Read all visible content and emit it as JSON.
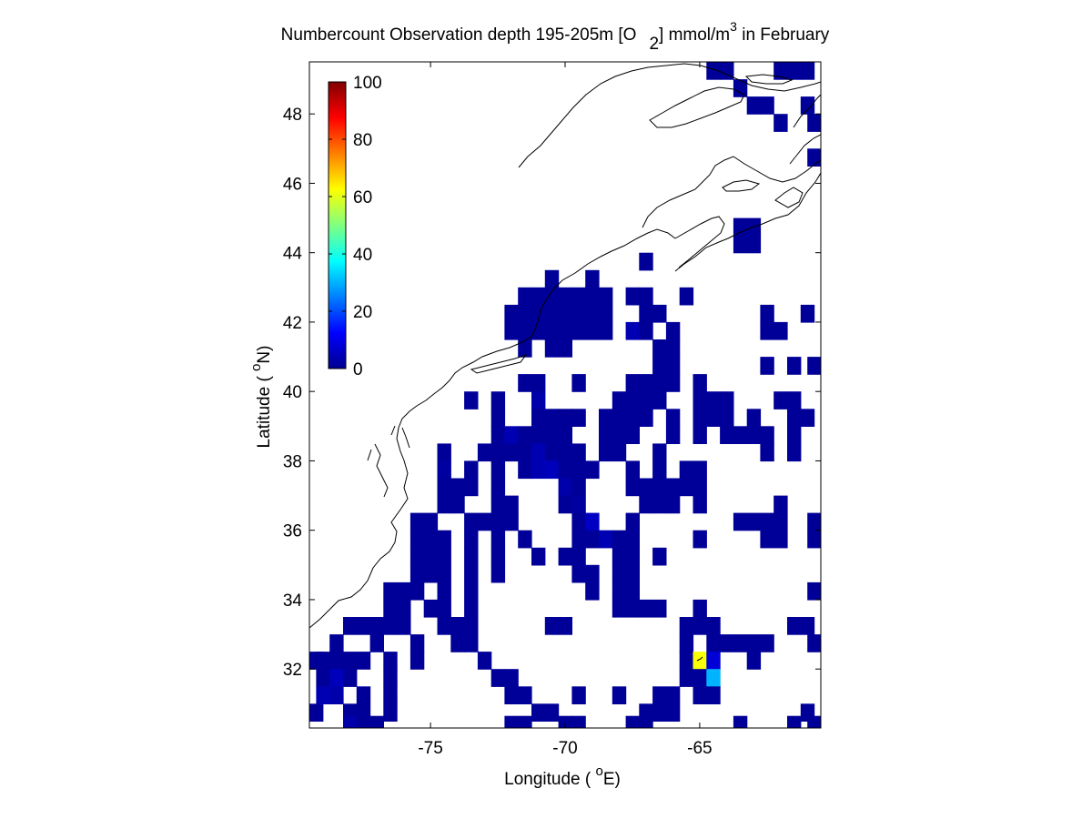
{
  "figure": {
    "title_main": "Numbercount Observation depth 195-205m [O",
    "title_sub": "2",
    "title_unit": "] mmol/m",
    "title_sup": "3",
    "title_tail": " in February",
    "xlabel_main": "Longitude ( ",
    "xlabel_sup": "o",
    "xlabel_tail": "E)",
    "ylabel_main": "Latitude ( ",
    "ylabel_sup": "o",
    "ylabel_tail": "N)"
  },
  "chart_data": {
    "type": "heatmap",
    "xlim": [
      -79.5,
      -60.5
    ],
    "ylim": [
      30.3,
      49.5
    ],
    "cell_size": 0.5,
    "xticks": [
      -75,
      -70,
      -65
    ],
    "xtick_labels": [
      "-75",
      "-70",
      "-65"
    ],
    "yticks": [
      32,
      34,
      36,
      38,
      40,
      42,
      44,
      46,
      48
    ],
    "ytick_labels": [
      "32",
      "34",
      "36",
      "38",
      "40",
      "42",
      "44",
      "46",
      "48"
    ],
    "colorbar": {
      "colormap": "jet",
      "range": [
        0,
        100
      ],
      "ticks": [
        0,
        20,
        40,
        60,
        80,
        100
      ],
      "tick_labels": [
        "0",
        "20",
        "40",
        "60",
        "80",
        "100"
      ],
      "placement": "top-left inside axes"
    },
    "grid": false,
    "coastline": true,
    "cells": [
      [
        -64.5,
        49.25,
        1
      ],
      [
        -64,
        49.25,
        1
      ],
      [
        -62,
        49.25,
        1
      ],
      [
        -61.5,
        49.25,
        1
      ],
      [
        -61,
        49.25,
        1
      ],
      [
        -63.5,
        48.75,
        1
      ],
      [
        -62.5,
        48.25,
        1
      ],
      [
        -61,
        48.25,
        1
      ],
      [
        -63,
        48.25,
        1
      ],
      [
        -62,
        47.75,
        1
      ],
      [
        -60.75,
        47.75,
        1
      ],
      [
        -60.75,
        46.75,
        1
      ],
      [
        -63.5,
        44.75,
        1
      ],
      [
        -63,
        44.75,
        1
      ],
      [
        -63.5,
        44.25,
        1
      ],
      [
        -63,
        44.25,
        1
      ],
      [
        -67,
        43.75,
        1
      ],
      [
        -70.5,
        43.25,
        1
      ],
      [
        -69,
        43.25,
        1
      ],
      [
        -71.5,
        42.75,
        1
      ],
      [
        -71,
        42.75,
        1
      ],
      [
        -70.5,
        42.75,
        1
      ],
      [
        -70,
        42.75,
        1
      ],
      [
        -69.5,
        42.75,
        1
      ],
      [
        -69,
        42.75,
        1
      ],
      [
        -68.5,
        42.75,
        1
      ],
      [
        -67.5,
        42.75,
        1
      ],
      [
        -67,
        42.75,
        1
      ],
      [
        -65.5,
        42.75,
        1
      ],
      [
        -72,
        42.25,
        1
      ],
      [
        -71.5,
        42.25,
        1
      ],
      [
        -71,
        42.25,
        1
      ],
      [
        -70.5,
        42.25,
        1
      ],
      [
        -70,
        42.25,
        1
      ],
      [
        -69.5,
        42.25,
        1
      ],
      [
        -69,
        42.25,
        1
      ],
      [
        -68.5,
        42.25,
        1
      ],
      [
        -67,
        42.25,
        1
      ],
      [
        -66.5,
        42.25,
        1
      ],
      [
        -62.5,
        42.25,
        1
      ],
      [
        -61,
        42.25,
        1
      ],
      [
        -72,
        41.75,
        1
      ],
      [
        -71.5,
        41.75,
        1
      ],
      [
        -71,
        41.75,
        1
      ],
      [
        -70.5,
        41.75,
        1
      ],
      [
        -70,
        41.75,
        1
      ],
      [
        -69.5,
        41.75,
        1
      ],
      [
        -69,
        41.75,
        1
      ],
      [
        -68.5,
        41.75,
        1
      ],
      [
        -67.5,
        41.75,
        4
      ],
      [
        -67,
        41.75,
        1
      ],
      [
        -66,
        41.75,
        1
      ],
      [
        -62.5,
        41.75,
        1
      ],
      [
        -62,
        41.75,
        1
      ],
      [
        -71.5,
        41.25,
        1
      ],
      [
        -70.5,
        41.25,
        1
      ],
      [
        -70,
        41.25,
        1
      ],
      [
        -66.5,
        41.25,
        1
      ],
      [
        -66,
        41.25,
        1
      ],
      [
        -66.5,
        40.75,
        1
      ],
      [
        -66,
        40.75,
        1
      ],
      [
        -62.5,
        40.75,
        1
      ],
      [
        -61.5,
        40.75,
        1
      ],
      [
        -60.75,
        40.75,
        1
      ],
      [
        -71.5,
        40.25,
        1
      ],
      [
        -71,
        40.25,
        1
      ],
      [
        -69.5,
        40.25,
        1
      ],
      [
        -67.5,
        40.25,
        1
      ],
      [
        -67,
        40.25,
        1
      ],
      [
        -66.5,
        40.25,
        1
      ],
      [
        -66,
        40.25,
        1
      ],
      [
        -65,
        40.25,
        1
      ],
      [
        -73.5,
        39.75,
        1
      ],
      [
        -72.5,
        39.75,
        1
      ],
      [
        -71,
        39.75,
        3
      ],
      [
        -68,
        39.75,
        1
      ],
      [
        -67.5,
        39.75,
        1
      ],
      [
        -67,
        39.75,
        1
      ],
      [
        -66.5,
        39.75,
        1
      ],
      [
        -65,
        39.75,
        1
      ],
      [
        -64.5,
        39.75,
        1
      ],
      [
        -64,
        39.75,
        1
      ],
      [
        -62,
        39.75,
        1
      ],
      [
        -61.5,
        39.75,
        1
      ],
      [
        -72.5,
        39.25,
        1
      ],
      [
        -71,
        39.25,
        1
      ],
      [
        -70.5,
        39.25,
        1
      ],
      [
        -70,
        39.25,
        1
      ],
      [
        -69.5,
        39.25,
        1
      ],
      [
        -68.5,
        39.25,
        1
      ],
      [
        -68,
        39.25,
        1
      ],
      [
        -67.5,
        39.25,
        1
      ],
      [
        -67,
        39.25,
        1
      ],
      [
        -66,
        39.25,
        1
      ],
      [
        -65,
        39.25,
        1
      ],
      [
        -64.5,
        39.25,
        1
      ],
      [
        -64,
        39.25,
        1
      ],
      [
        -63,
        39.25,
        1
      ],
      [
        -61.5,
        39.25,
        1
      ],
      [
        -61,
        39.25,
        1
      ],
      [
        -72.5,
        38.75,
        1
      ],
      [
        -72,
        38.75,
        4
      ],
      [
        -71.5,
        38.75,
        1
      ],
      [
        -71,
        38.75,
        1
      ],
      [
        -70.5,
        38.75,
        1
      ],
      [
        -70,
        38.75,
        1
      ],
      [
        -68.5,
        38.75,
        1
      ],
      [
        -68,
        38.75,
        1
      ],
      [
        -67.5,
        38.75,
        1
      ],
      [
        -66,
        38.75,
        1
      ],
      [
        -65,
        38.75,
        1
      ],
      [
        -64,
        38.75,
        1
      ],
      [
        -63.5,
        38.75,
        1
      ],
      [
        -63,
        38.75,
        1
      ],
      [
        -62.5,
        38.75,
        1
      ],
      [
        -61.5,
        38.75,
        1
      ],
      [
        -73,
        38.25,
        1
      ],
      [
        -72.5,
        38.25,
        1
      ],
      [
        -72,
        38.25,
        1
      ],
      [
        -71.5,
        38.25,
        1
      ],
      [
        -71,
        38.25,
        4
      ],
      [
        -70.5,
        38.25,
        1
      ],
      [
        -70,
        38.25,
        1
      ],
      [
        -69.5,
        38.25,
        1
      ],
      [
        -68.5,
        38.25,
        1
      ],
      [
        -68,
        38.25,
        1
      ],
      [
        -66.5,
        38.25,
        1
      ],
      [
        -62.5,
        38.25,
        1
      ],
      [
        -61.5,
        38.25,
        1
      ],
      [
        -74.5,
        38.25,
        1
      ],
      [
        -74.5,
        37.75,
        2
      ],
      [
        -73.5,
        37.75,
        1
      ],
      [
        -72.5,
        37.75,
        1
      ],
      [
        -71.5,
        37.75,
        1
      ],
      [
        -71,
        37.75,
        4
      ],
      [
        -70.5,
        37.75,
        5
      ],
      [
        -70,
        37.75,
        1
      ],
      [
        -69.5,
        37.75,
        1
      ],
      [
        -69,
        37.75,
        1
      ],
      [
        -67.5,
        37.75,
        1
      ],
      [
        -66.5,
        37.75,
        1
      ],
      [
        -65.5,
        37.75,
        1
      ],
      [
        -65,
        37.75,
        1
      ],
      [
        -74.5,
        37.25,
        1
      ],
      [
        -74,
        37.25,
        1
      ],
      [
        -73.5,
        37.25,
        1
      ],
      [
        -72.5,
        37.25,
        1
      ],
      [
        -70,
        37.25,
        3
      ],
      [
        -69.5,
        37.25,
        1
      ],
      [
        -67.5,
        37.25,
        1
      ],
      [
        -67,
        37.25,
        1
      ],
      [
        -66.5,
        37.25,
        1
      ],
      [
        -66,
        37.25,
        1
      ],
      [
        -65.5,
        37.25,
        1
      ],
      [
        -65,
        37.25,
        1
      ],
      [
        -74.5,
        36.75,
        1
      ],
      [
        -74,
        36.75,
        1
      ],
      [
        -72.5,
        36.75,
        1
      ],
      [
        -72,
        36.75,
        1
      ],
      [
        -70,
        36.75,
        1
      ],
      [
        -69.5,
        36.75,
        2
      ],
      [
        -67,
        36.75,
        1
      ],
      [
        -66.5,
        36.75,
        1
      ],
      [
        -66,
        36.75,
        1
      ],
      [
        -65,
        36.75,
        1
      ],
      [
        -62,
        36.75,
        1
      ],
      [
        -75.5,
        36.25,
        1
      ],
      [
        -75,
        36.25,
        1
      ],
      [
        -73.5,
        36.25,
        1
      ],
      [
        -73,
        36.25,
        1
      ],
      [
        -72.5,
        36.25,
        1
      ],
      [
        -72,
        36.25,
        1
      ],
      [
        -69.5,
        36.25,
        1
      ],
      [
        -69,
        36.25,
        6
      ],
      [
        -67.5,
        36.25,
        1
      ],
      [
        -63.5,
        36.25,
        1
      ],
      [
        -63,
        36.25,
        1
      ],
      [
        -62.5,
        36.25,
        1
      ],
      [
        -62,
        36.25,
        1
      ],
      [
        -60.75,
        36.25,
        1
      ],
      [
        -75.5,
        35.75,
        1
      ],
      [
        -75,
        35.75,
        1
      ],
      [
        -74.5,
        35.75,
        1
      ],
      [
        -73.5,
        35.75,
        1
      ],
      [
        -72.5,
        35.75,
        1
      ],
      [
        -71.5,
        35.75,
        1
      ],
      [
        -69.5,
        35.75,
        1
      ],
      [
        -69,
        35.75,
        1
      ],
      [
        -68.5,
        35.75,
        4
      ],
      [
        -68,
        35.75,
        1
      ],
      [
        -67.5,
        35.75,
        1
      ],
      [
        -65,
        35.75,
        1
      ],
      [
        -62.5,
        35.75,
        1
      ],
      [
        -62,
        35.75,
        1
      ],
      [
        -60.75,
        35.75,
        1
      ],
      [
        -75.5,
        35.25,
        1
      ],
      [
        -75,
        35.25,
        1
      ],
      [
        -74.5,
        35.25,
        1
      ],
      [
        -73.5,
        35.25,
        1
      ],
      [
        -72.5,
        35.25,
        1
      ],
      [
        -71,
        35.25,
        1
      ],
      [
        -70,
        35.25,
        1
      ],
      [
        -69.5,
        35.25,
        1
      ],
      [
        -68,
        35.25,
        1
      ],
      [
        -67.5,
        35.25,
        1
      ],
      [
        -66.5,
        35.25,
        1
      ],
      [
        -75.5,
        34.75,
        1
      ],
      [
        -75,
        34.75,
        1
      ],
      [
        -74.5,
        34.75,
        1
      ],
      [
        -73.5,
        34.75,
        1
      ],
      [
        -72.5,
        34.75,
        1
      ],
      [
        -69.5,
        34.75,
        1
      ],
      [
        -69,
        34.75,
        1
      ],
      [
        -68,
        34.75,
        1
      ],
      [
        -67.5,
        34.75,
        1
      ],
      [
        -76.5,
        34.25,
        1
      ],
      [
        -76,
        34.25,
        1
      ],
      [
        -75.5,
        34.25,
        1
      ],
      [
        -74.5,
        34.25,
        1
      ],
      [
        -73.5,
        34.25,
        1
      ],
      [
        -69,
        34.25,
        1
      ],
      [
        -68,
        34.25,
        1
      ],
      [
        -67.5,
        34.25,
        1
      ],
      [
        -60.75,
        34.25,
        1
      ],
      [
        -76.5,
        33.75,
        1
      ],
      [
        -76,
        33.75,
        1
      ],
      [
        -75,
        33.75,
        1
      ],
      [
        -74.5,
        33.75,
        1
      ],
      [
        -73.5,
        33.75,
        1
      ],
      [
        -68,
        33.75,
        1
      ],
      [
        -67.5,
        33.75,
        1
      ],
      [
        -67,
        33.75,
        1
      ],
      [
        -66.5,
        33.75,
        1
      ],
      [
        -65,
        33.75,
        1
      ],
      [
        -78,
        33.25,
        1
      ],
      [
        -77.5,
        33.25,
        1
      ],
      [
        -77,
        33.25,
        1
      ],
      [
        -76.5,
        33.25,
        1
      ],
      [
        -76,
        33.25,
        1
      ],
      [
        -74.5,
        33.25,
        1
      ],
      [
        -74,
        33.25,
        1
      ],
      [
        -73.5,
        33.25,
        1
      ],
      [
        -70.5,
        33.25,
        1
      ],
      [
        -70,
        33.25,
        1
      ],
      [
        -65.5,
        33.25,
        1
      ],
      [
        -65,
        33.25,
        1
      ],
      [
        -64.5,
        33.25,
        1
      ],
      [
        -61.5,
        33.25,
        1
      ],
      [
        -61,
        33.25,
        1
      ],
      [
        -78.5,
        32.75,
        1
      ],
      [
        -77,
        32.75,
        1
      ],
      [
        -75.5,
        32.75,
        1
      ],
      [
        -74,
        32.75,
        1
      ],
      [
        -73.5,
        32.75,
        1
      ],
      [
        -65.5,
        32.75,
        1
      ],
      [
        -64.5,
        32.75,
        1
      ],
      [
        -64,
        32.75,
        1
      ],
      [
        -63.5,
        32.75,
        1
      ],
      [
        -63,
        32.75,
        1
      ],
      [
        -62.5,
        32.75,
        1
      ],
      [
        -60.75,
        32.75,
        1
      ],
      [
        -79.25,
        32.25,
        1
      ],
      [
        -79,
        32.25,
        1
      ],
      [
        -78.5,
        32.25,
        1
      ],
      [
        -78,
        32.25,
        1
      ],
      [
        -77.5,
        32.25,
        1
      ],
      [
        -76.5,
        32.25,
        1
      ],
      [
        -75.5,
        32.25,
        1
      ],
      [
        -73,
        32.25,
        1
      ],
      [
        -65.5,
        32.25,
        1
      ],
      [
        -65,
        32.25,
        62
      ],
      [
        -64.5,
        32.25,
        8
      ],
      [
        -63,
        32.25,
        1
      ],
      [
        -79,
        31.75,
        1
      ],
      [
        -78.5,
        31.75,
        5
      ],
      [
        -78,
        31.75,
        1
      ],
      [
        -76.5,
        31.75,
        1
      ],
      [
        -72.5,
        31.75,
        1
      ],
      [
        -72,
        31.75,
        1
      ],
      [
        -65.5,
        31.75,
        1
      ],
      [
        -65,
        31.75,
        1
      ],
      [
        -64.5,
        31.75,
        30
      ],
      [
        -79,
        31.25,
        4
      ],
      [
        -78.5,
        31.25,
        3
      ],
      [
        -77.5,
        31.25,
        1
      ],
      [
        -76.5,
        31.25,
        1
      ],
      [
        -72,
        31.25,
        1
      ],
      [
        -71.5,
        31.25,
        1
      ],
      [
        -69.5,
        31.25,
        1
      ],
      [
        -68,
        31.25,
        1
      ],
      [
        -66.5,
        31.25,
        1
      ],
      [
        -66,
        31.25,
        1
      ],
      [
        -65,
        31.25,
        1
      ],
      [
        -64.5,
        31.25,
        1
      ],
      [
        -79.25,
        30.75,
        1
      ],
      [
        -78,
        30.75,
        1
      ],
      [
        -77.5,
        30.75,
        1
      ],
      [
        -76.5,
        30.75,
        1
      ],
      [
        -71,
        30.75,
        1
      ],
      [
        -70.5,
        30.75,
        1
      ],
      [
        -67,
        30.75,
        1
      ],
      [
        -66.5,
        30.75,
        1
      ],
      [
        -66,
        30.75,
        1
      ],
      [
        -61,
        30.75,
        1
      ],
      [
        -78,
        30.4,
        3
      ],
      [
        -77.5,
        30.4,
        1
      ],
      [
        -77,
        30.4,
        1
      ],
      [
        -72,
        30.4,
        1
      ],
      [
        -71.5,
        30.4,
        1
      ],
      [
        -70,
        30.4,
        1
      ],
      [
        -69.5,
        30.4,
        1
      ],
      [
        -67.5,
        30.4,
        1
      ],
      [
        -67,
        30.4,
        1
      ],
      [
        -63.5,
        30.4,
        1
      ],
      [
        -61.5,
        30.4,
        1
      ],
      [
        -60.75,
        30.4,
        1
      ]
    ]
  }
}
